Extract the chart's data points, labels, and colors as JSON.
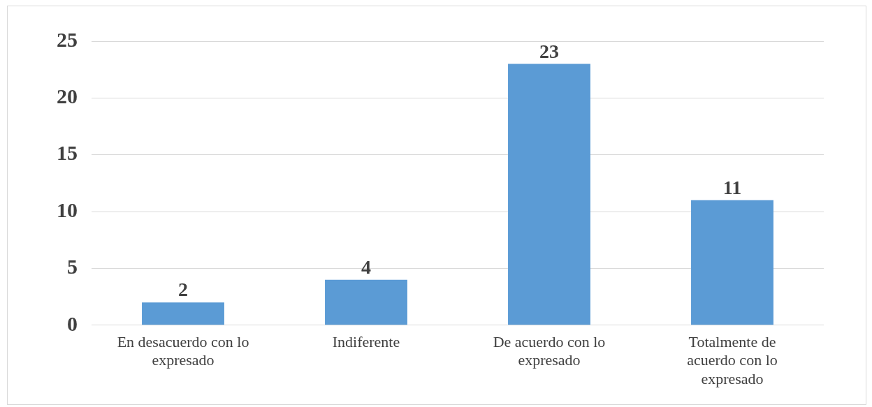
{
  "chart_data": {
    "type": "bar",
    "categories": [
      "En desacuerdo con lo expresado",
      "Indiferente",
      "De acuerdo con lo expresado",
      "Totalmente de acuerdo con lo expresado"
    ],
    "values": [
      2,
      4,
      23,
      11
    ],
    "color": "#5b9bd5",
    "ylim": [
      0,
      25
    ],
    "yticks": [
      0,
      5,
      10,
      15,
      20,
      25
    ],
    "grid": "y",
    "data_labels": true
  }
}
